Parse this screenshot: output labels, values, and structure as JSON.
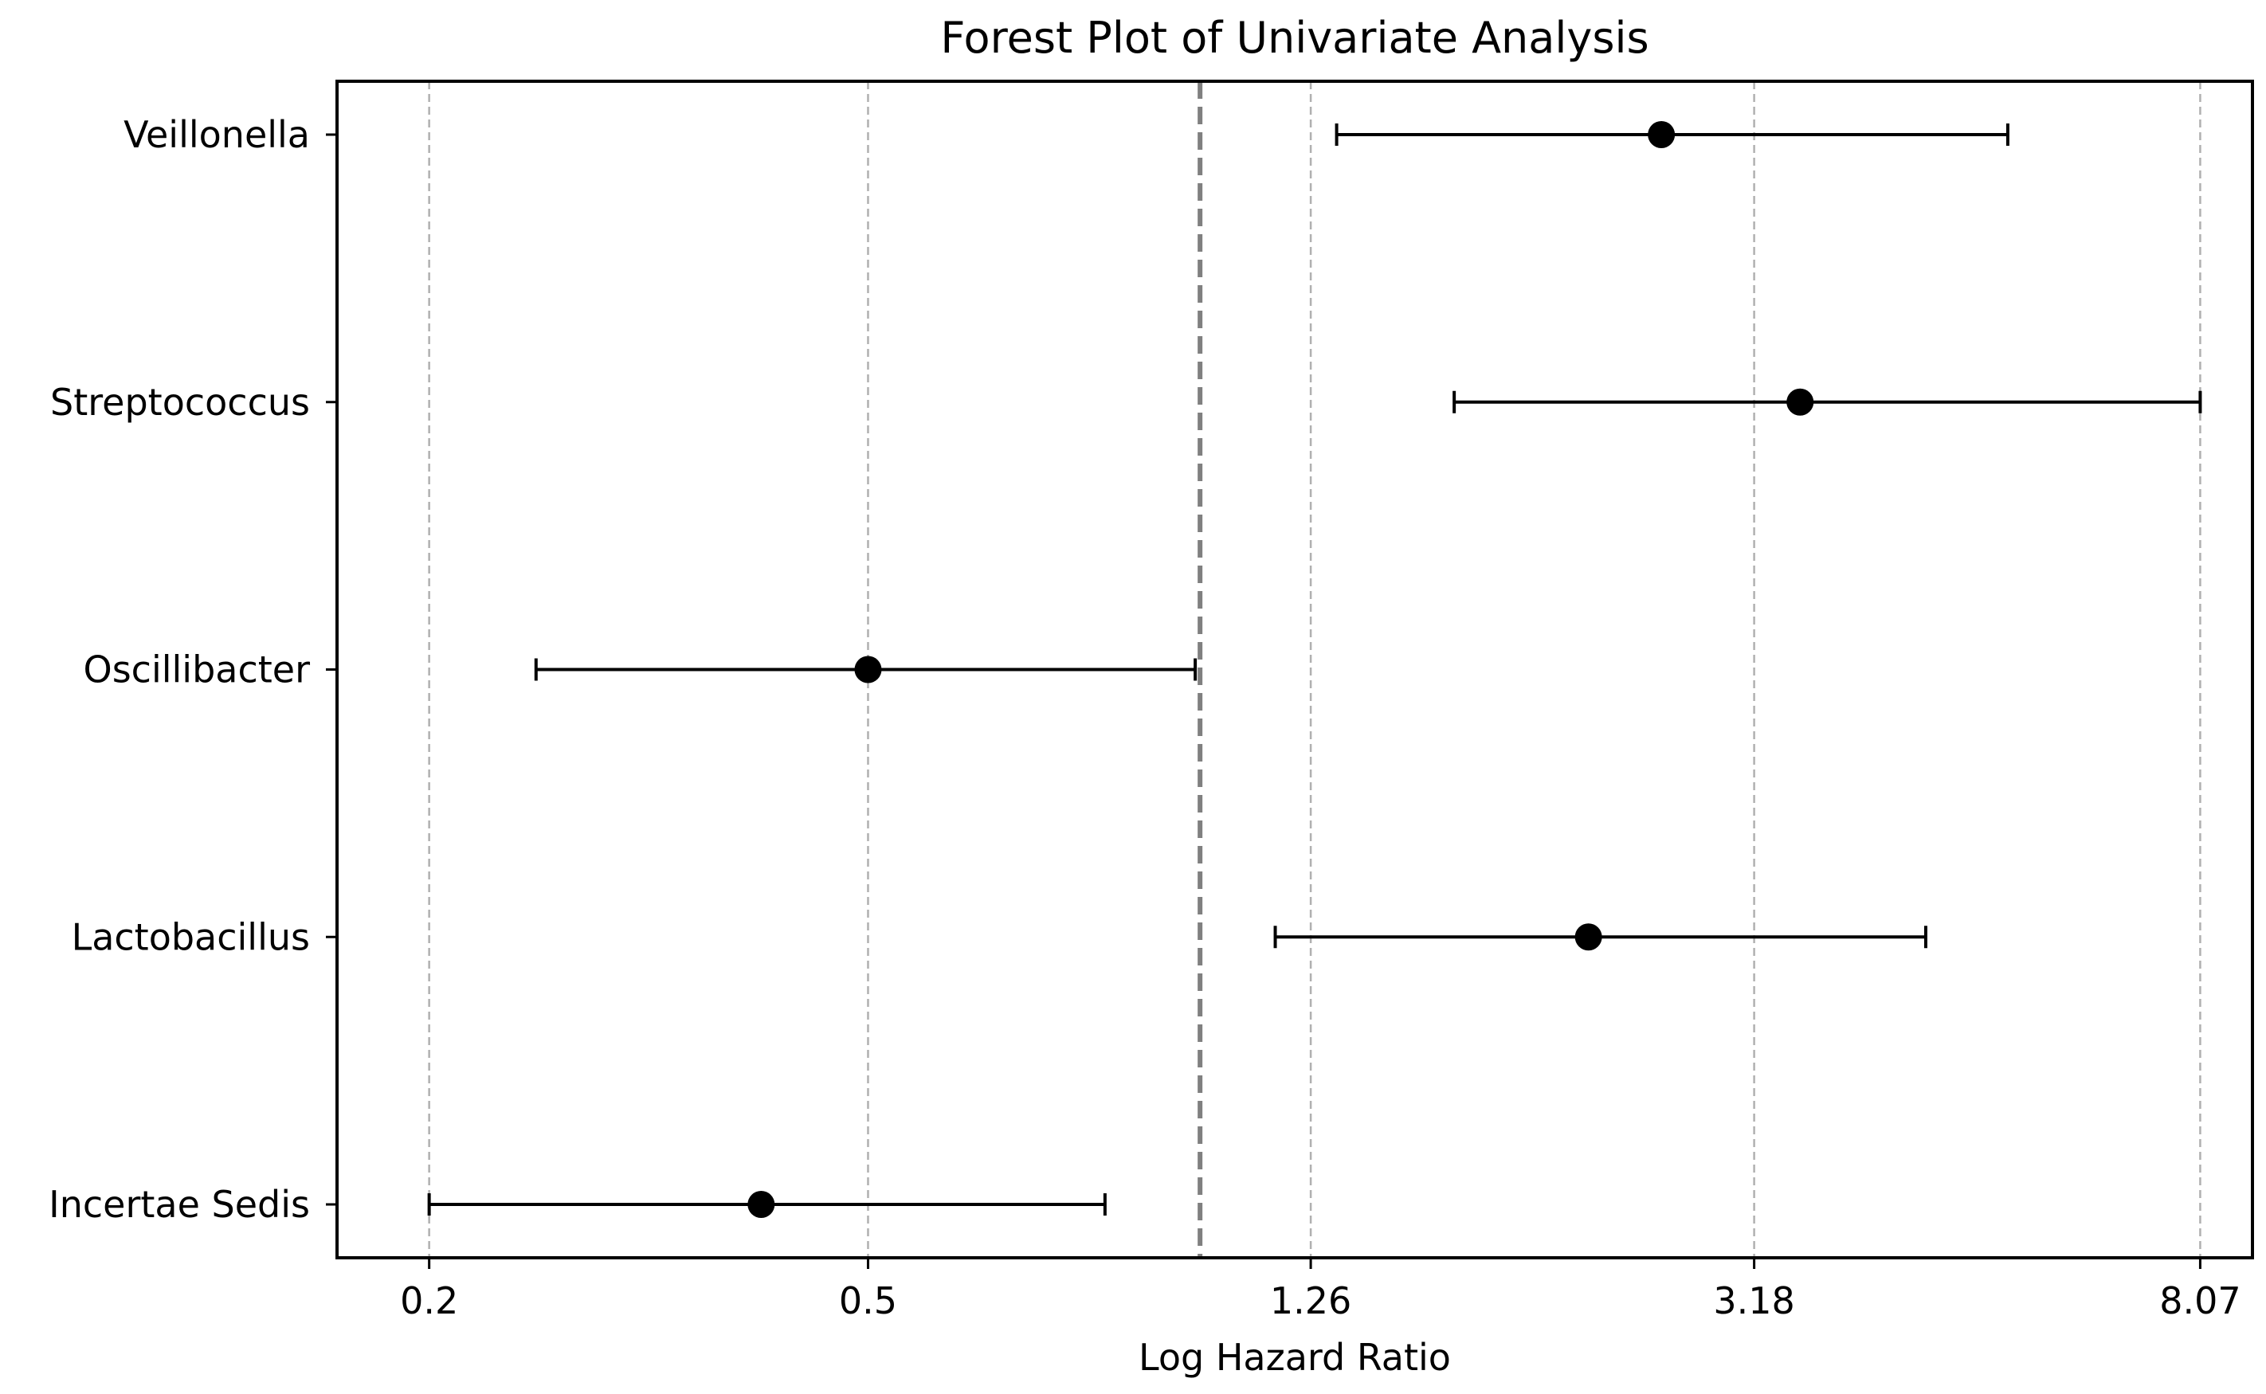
{
  "chart_data": {
    "type": "forest",
    "title": "Forest Plot of Univariate Analysis",
    "xlabel": "Log Hazard Ratio",
    "ylabel": "",
    "x_scale": "log",
    "xlim": [
      0.165,
      9.0
    ],
    "xticks": [
      0.2,
      0.5,
      1.26,
      3.18,
      8.07
    ],
    "xtick_labels": [
      "0.2",
      "0.5",
      "1.26",
      "3.18",
      "8.07"
    ],
    "grid": "vertical-dashed",
    "reference_line": 1.0,
    "categories": [
      "Veillonella",
      "Streptococcus",
      "Oscillibacter",
      "Lactobacillus",
      "Incertae Sedis"
    ],
    "series": [
      {
        "estimate": [
          2.62,
          3.5,
          0.5,
          2.25,
          0.4
        ],
        "ci_lower": [
          1.33,
          1.7,
          0.25,
          1.17,
          0.2
        ],
        "ci_upper": [
          5.4,
          8.07,
          0.99,
          4.55,
          0.82
        ]
      }
    ],
    "colors": {
      "marker": "#000000",
      "errorbar": "#000000",
      "grid": "#b0b0b0",
      "reference": "#808080",
      "frame": "#000000"
    }
  }
}
